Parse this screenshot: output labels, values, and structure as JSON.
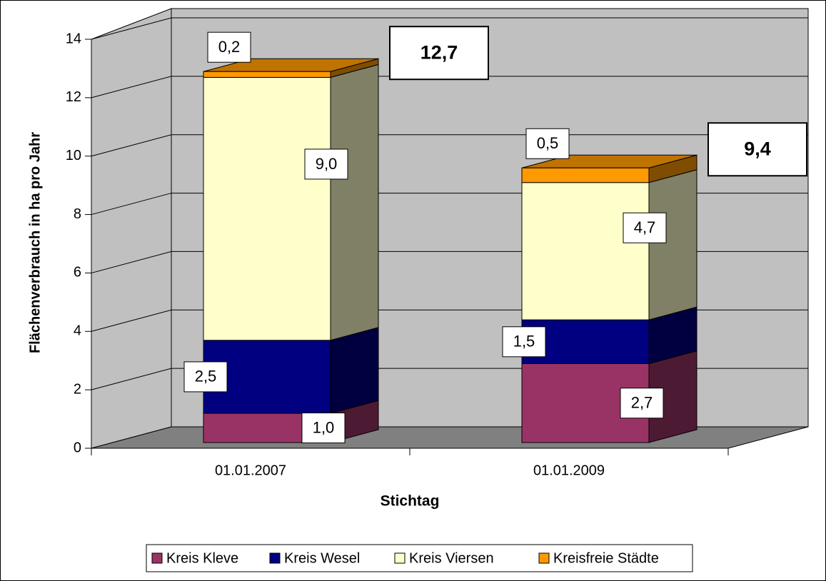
{
  "chart_data": {
    "type": "bar3d_stacked",
    "x_label": "Stichtag",
    "y_label": "Flächenverbrauch in ha pro Jahr",
    "categories": [
      "01.01.2007",
      "01.01.2009"
    ],
    "series": [
      {
        "name": "Kreis Kleve",
        "color": "#993366",
        "values": [
          1.0,
          2.7
        ],
        "value_labels": [
          "1,0",
          "2,7"
        ]
      },
      {
        "name": "Kreis Wesel",
        "color": "#000080",
        "values": [
          2.5,
          1.5
        ],
        "value_labels": [
          "2,5",
          "1,5"
        ]
      },
      {
        "name": "Kreis Viersen",
        "color": "#ffffcc",
        "values": [
          9.0,
          4.7
        ],
        "value_labels": [
          "9,0",
          "4,7"
        ]
      },
      {
        "name": "Kreisfreie Städte",
        "color": "#ff9900",
        "values": [
          0.2,
          0.5
        ],
        "value_labels": [
          "0,2",
          "0,5"
        ]
      }
    ],
    "totals": {
      "values": [
        12.7,
        9.4
      ],
      "value_labels": [
        "12,7",
        "9,4"
      ]
    },
    "ylim": [
      0,
      14
    ],
    "yticks": [
      0,
      2,
      4,
      6,
      8,
      10,
      12,
      14
    ],
    "grid": true,
    "legend": "bottom"
  }
}
